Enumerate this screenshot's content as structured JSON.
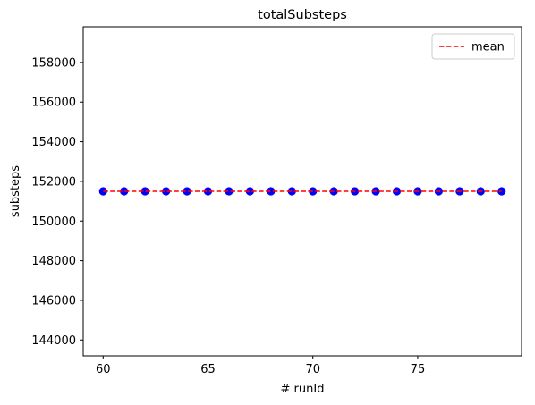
{
  "chart_data": {
    "type": "scatter",
    "title": "totalSubsteps",
    "xlabel": "# runId",
    "ylabel": "substeps",
    "xlim": [
      59.05,
      79.95
    ],
    "ylim": [
      143200,
      159800
    ],
    "x_ticks": [
      60,
      65,
      70,
      75
    ],
    "y_ticks": [
      144000,
      146000,
      148000,
      150000,
      152000,
      154000,
      156000,
      158000
    ],
    "x": [
      60,
      61,
      62,
      63,
      64,
      65,
      66,
      67,
      68,
      69,
      70,
      71,
      72,
      73,
      74,
      75,
      76,
      77,
      78,
      79
    ],
    "series": [
      {
        "values": [
          151500,
          151500,
          151500,
          151500,
          151500,
          151500,
          151500,
          151500,
          151500,
          151500,
          151500,
          151500,
          151500,
          151500,
          151500,
          151500,
          151500,
          151500,
          151500,
          151500
        ],
        "color": "#0000ff",
        "marker": "circle"
      }
    ],
    "mean_line": {
      "name": "mean",
      "value": 151500,
      "color": "#ff0000",
      "style": "dashed"
    },
    "grid": false,
    "legend": {
      "placement": "top-right",
      "entries": [
        "mean"
      ]
    }
  }
}
